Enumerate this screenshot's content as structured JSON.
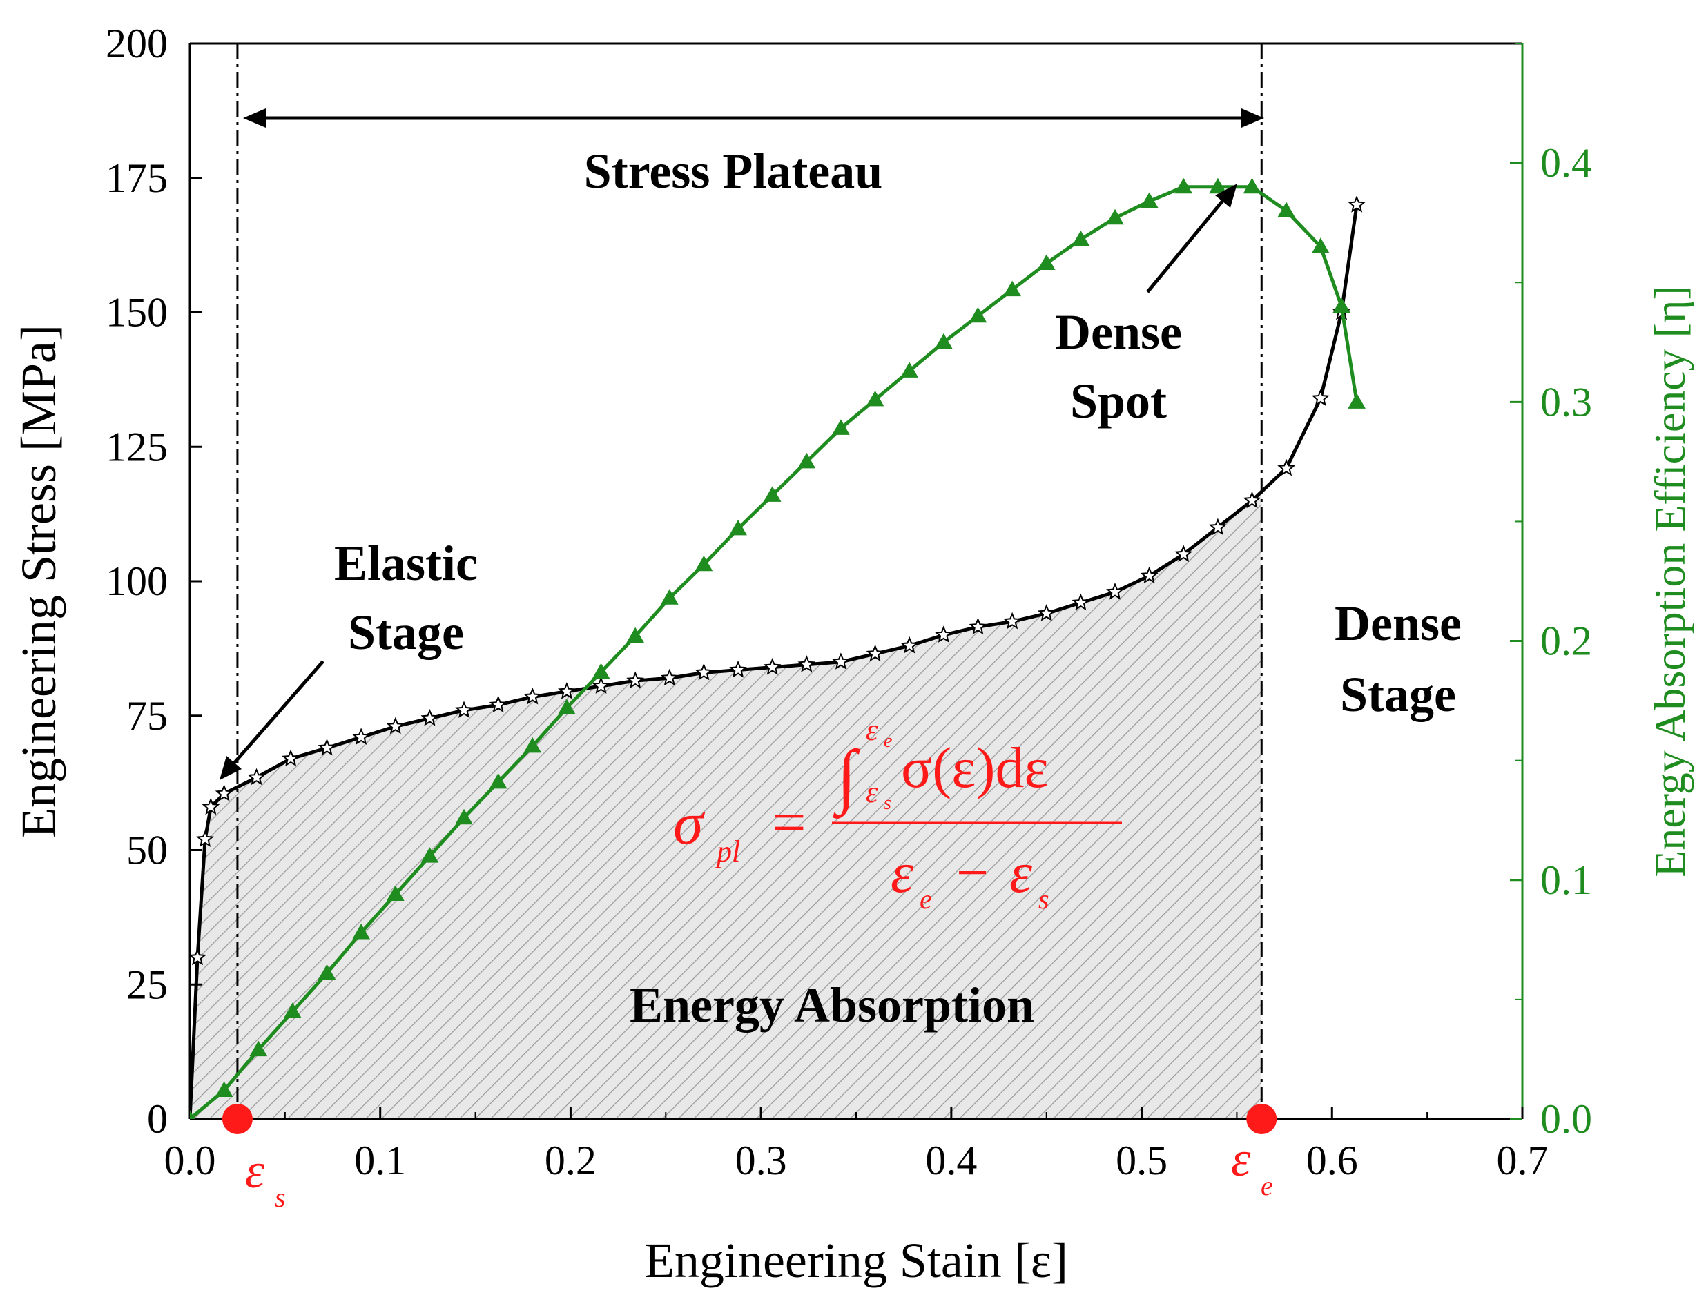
{
  "chart_data": {
    "type": "line",
    "xlabel": "Engineering Stain [ε]",
    "ylabel": "Engineering Stress [MPa]",
    "y2label": "Energy Absorption Efficiency [η]",
    "xlim": [
      0.0,
      0.7
    ],
    "ylim": [
      0,
      200
    ],
    "y2lim": [
      0.0,
      0.45
    ],
    "x_ticks": [
      "0.0",
      "0.1",
      "0.2",
      "0.3",
      "0.4",
      "0.5",
      "0.6",
      "0.7"
    ],
    "y_ticks": [
      "0",
      "25",
      "50",
      "75",
      "100",
      "125",
      "150",
      "175",
      "200"
    ],
    "y2_ticks": [
      "0.0",
      "0.1",
      "0.2",
      "0.3",
      "0.4"
    ],
    "series": [
      {
        "name": "Engineering Stress",
        "axis": "left",
        "color": "#000000",
        "marker": "star",
        "x": [
          0.0,
          0.004,
          0.008,
          0.011,
          0.018,
          0.035,
          0.053,
          0.072,
          0.09,
          0.108,
          0.126,
          0.144,
          0.162,
          0.18,
          0.198,
          0.216,
          0.234,
          0.252,
          0.27,
          0.288,
          0.306,
          0.324,
          0.342,
          0.36,
          0.378,
          0.396,
          0.414,
          0.432,
          0.45,
          0.468,
          0.486,
          0.504,
          0.522,
          0.54,
          0.558,
          0.576,
          0.594,
          0.605,
          0.613
        ],
        "y": [
          0,
          30,
          52,
          58,
          60.5,
          63.5,
          67,
          69,
          71,
          73,
          74.5,
          76,
          77,
          78.5,
          79.5,
          80.5,
          81.5,
          82,
          83,
          83.5,
          84,
          84.5,
          85,
          86.5,
          88,
          90,
          91.5,
          92.5,
          94,
          96,
          98,
          101,
          105,
          110,
          115,
          121,
          134,
          150,
          170
        ]
      },
      {
        "name": "Energy Absorption Efficiency",
        "axis": "right",
        "color": "#1f8c1f",
        "marker": "triangle",
        "x": [
          0.0,
          0.018,
          0.036,
          0.054,
          0.072,
          0.09,
          0.108,
          0.126,
          0.144,
          0.162,
          0.18,
          0.198,
          0.216,
          0.234,
          0.252,
          0.27,
          0.288,
          0.306,
          0.324,
          0.342,
          0.36,
          0.378,
          0.396,
          0.414,
          0.432,
          0.45,
          0.468,
          0.486,
          0.504,
          0.522,
          0.54,
          0.558,
          0.576,
          0.594,
          0.605,
          0.613
        ],
        "y": [
          0.0,
          0.012,
          0.029,
          0.045,
          0.061,
          0.078,
          0.094,
          0.11,
          0.126,
          0.141,
          0.156,
          0.172,
          0.187,
          0.202,
          0.218,
          0.232,
          0.247,
          0.261,
          0.275,
          0.289,
          0.301,
          0.313,
          0.325,
          0.336,
          0.347,
          0.358,
          0.368,
          0.377,
          0.384,
          0.39,
          0.39,
          0.39,
          0.38,
          0.365,
          0.34,
          0.3
        ]
      }
    ],
    "shaded_region": {
      "label": "Energy Absorption",
      "x_start": 0.025,
      "x_end": 0.563
    },
    "vertical_lines": [
      {
        "name": "epsilon-s",
        "x": 0.025,
        "label": "ε",
        "subscript": "s"
      },
      {
        "name": "epsilon-e",
        "x": 0.563,
        "label": "ε",
        "subscript": "e"
      }
    ],
    "annotations": {
      "stress_plateau": "Stress Plateau",
      "elastic_line1": "Elastic",
      "elastic_line2": "Stage",
      "dense_spot_line1": "Dense",
      "dense_spot_line2": "Spot",
      "dense_stage_line1": "Dense",
      "dense_stage_line2": "Stage",
      "energy_absorption": "Energy Absorption"
    },
    "formula": {
      "lhs_symbol": "σ",
      "lhs_sub": "pl",
      "equals": "=",
      "integral": "∫",
      "upper_symbol": "ε",
      "upper_sub": "e",
      "lower_symbol": "ε",
      "lower_sub": "s",
      "integrand": "σ(ε)dε",
      "den_a": "ε",
      "den_a_sub": "e",
      "den_minus": "−",
      "den_b": "ε",
      "den_b_sub": "s"
    },
    "colors": {
      "stress": "#000000",
      "efficiency": "#1f8c1f",
      "highlight": "#ff1a1a",
      "shade": "#e6e6e6"
    }
  }
}
